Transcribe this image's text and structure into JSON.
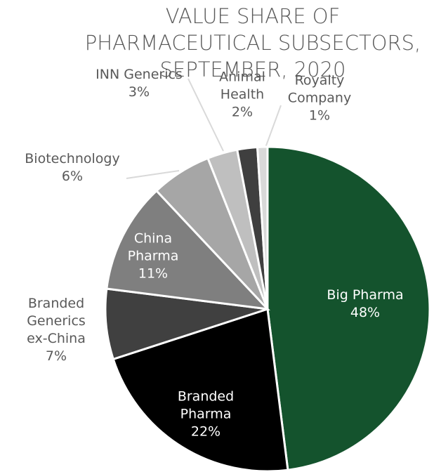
{
  "chart_data": {
    "type": "pie",
    "title": "VALUE SHARE OF PHARMACEUTICAL SUBSECTORS, SEPTEMBER, 2020",
    "categories": [
      "Big Pharma",
      "Branded Pharma",
      "Branded Generics ex-China",
      "China Pharma",
      "Biotechnology",
      "INN Generics",
      "Animal Health",
      "Royalty Company"
    ],
    "values": [
      48,
      22,
      7,
      11,
      6,
      3,
      2,
      1
    ],
    "value_labels": [
      "48%",
      "22%",
      "7%",
      "11%",
      "6%",
      "3%",
      "2%",
      "1%"
    ],
    "colors": [
      "#14532d",
      "#000000",
      "#404040",
      "#7f7f7f",
      "#a6a6a6",
      "#bfbfbf",
      "#3f3f3f",
      "#d9d9d9"
    ]
  }
}
